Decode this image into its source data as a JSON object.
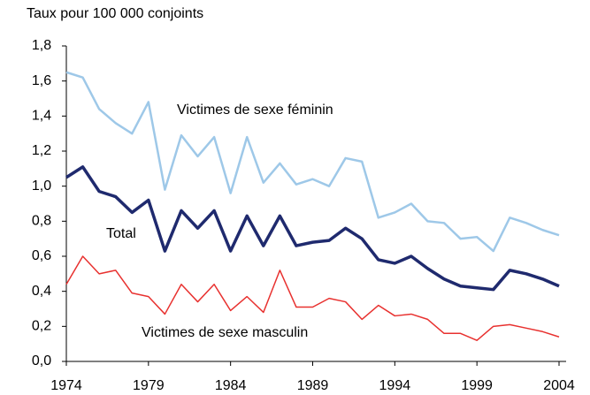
{
  "chart_data": {
    "type": "line",
    "title": "Taux pour 100 000 conjoints",
    "x": [
      1974,
      1975,
      1976,
      1977,
      1978,
      1979,
      1980,
      1981,
      1982,
      1983,
      1984,
      1985,
      1986,
      1987,
      1988,
      1989,
      1990,
      1991,
      1992,
      1993,
      1994,
      1995,
      1996,
      1997,
      1998,
      1999,
      2000,
      2001,
      2002,
      2003,
      2004
    ],
    "xlim": [
      1974,
      2004
    ],
    "xticks": [
      1974,
      1979,
      1984,
      1989,
      1994,
      1999,
      2004
    ],
    "ylim": [
      0,
      1.8
    ],
    "yticks": [
      {
        "value": 0,
        "label": "0,0"
      },
      {
        "value": 0.2,
        "label": "0,2"
      },
      {
        "value": 0.4,
        "label": "0,4"
      },
      {
        "value": 0.6,
        "label": "0,6"
      },
      {
        "value": 0.8,
        "label": "0,8"
      },
      {
        "value": 1.0,
        "label": "1,0"
      },
      {
        "value": 1.2,
        "label": "1,2"
      },
      {
        "value": 1.4,
        "label": "1,4"
      },
      {
        "value": 1.6,
        "label": "1,6"
      },
      {
        "value": 1.8,
        "label": "1,8"
      }
    ],
    "series": [
      {
        "name": "Victimes de sexe féminin",
        "color": "#9ec8e8",
        "values": [
          1.65,
          1.62,
          1.44,
          1.36,
          1.3,
          1.48,
          0.98,
          1.29,
          1.17,
          1.28,
          0.96,
          1.28,
          1.02,
          1.13,
          1.01,
          1.04,
          1.0,
          1.16,
          1.14,
          0.82,
          0.85,
          0.9,
          0.8,
          0.79,
          0.7,
          0.71,
          0.63,
          0.82,
          0.79,
          0.75,
          0.72
        ]
      },
      {
        "name": "Total",
        "color": "#1f2a6e",
        "values": [
          1.05,
          1.11,
          0.97,
          0.94,
          0.85,
          0.92,
          0.63,
          0.86,
          0.76,
          0.86,
          0.63,
          0.83,
          0.66,
          0.83,
          0.66,
          0.68,
          0.69,
          0.76,
          0.7,
          0.58,
          0.56,
          0.6,
          0.53,
          0.47,
          0.43,
          0.42,
          0.41,
          0.52,
          0.5,
          0.47,
          0.43
        ]
      },
      {
        "name": "Victimes de sexe masculin",
        "color": "#e8312f",
        "values": [
          0.44,
          0.6,
          0.5,
          0.52,
          0.39,
          0.37,
          0.27,
          0.44,
          0.34,
          0.44,
          0.29,
          0.37,
          0.28,
          0.52,
          0.31,
          0.31,
          0.36,
          0.34,
          0.24,
          0.32,
          0.26,
          0.27,
          0.24,
          0.16,
          0.16,
          0.12,
          0.2,
          0.21,
          0.19,
          0.17,
          0.14
        ]
      }
    ]
  }
}
